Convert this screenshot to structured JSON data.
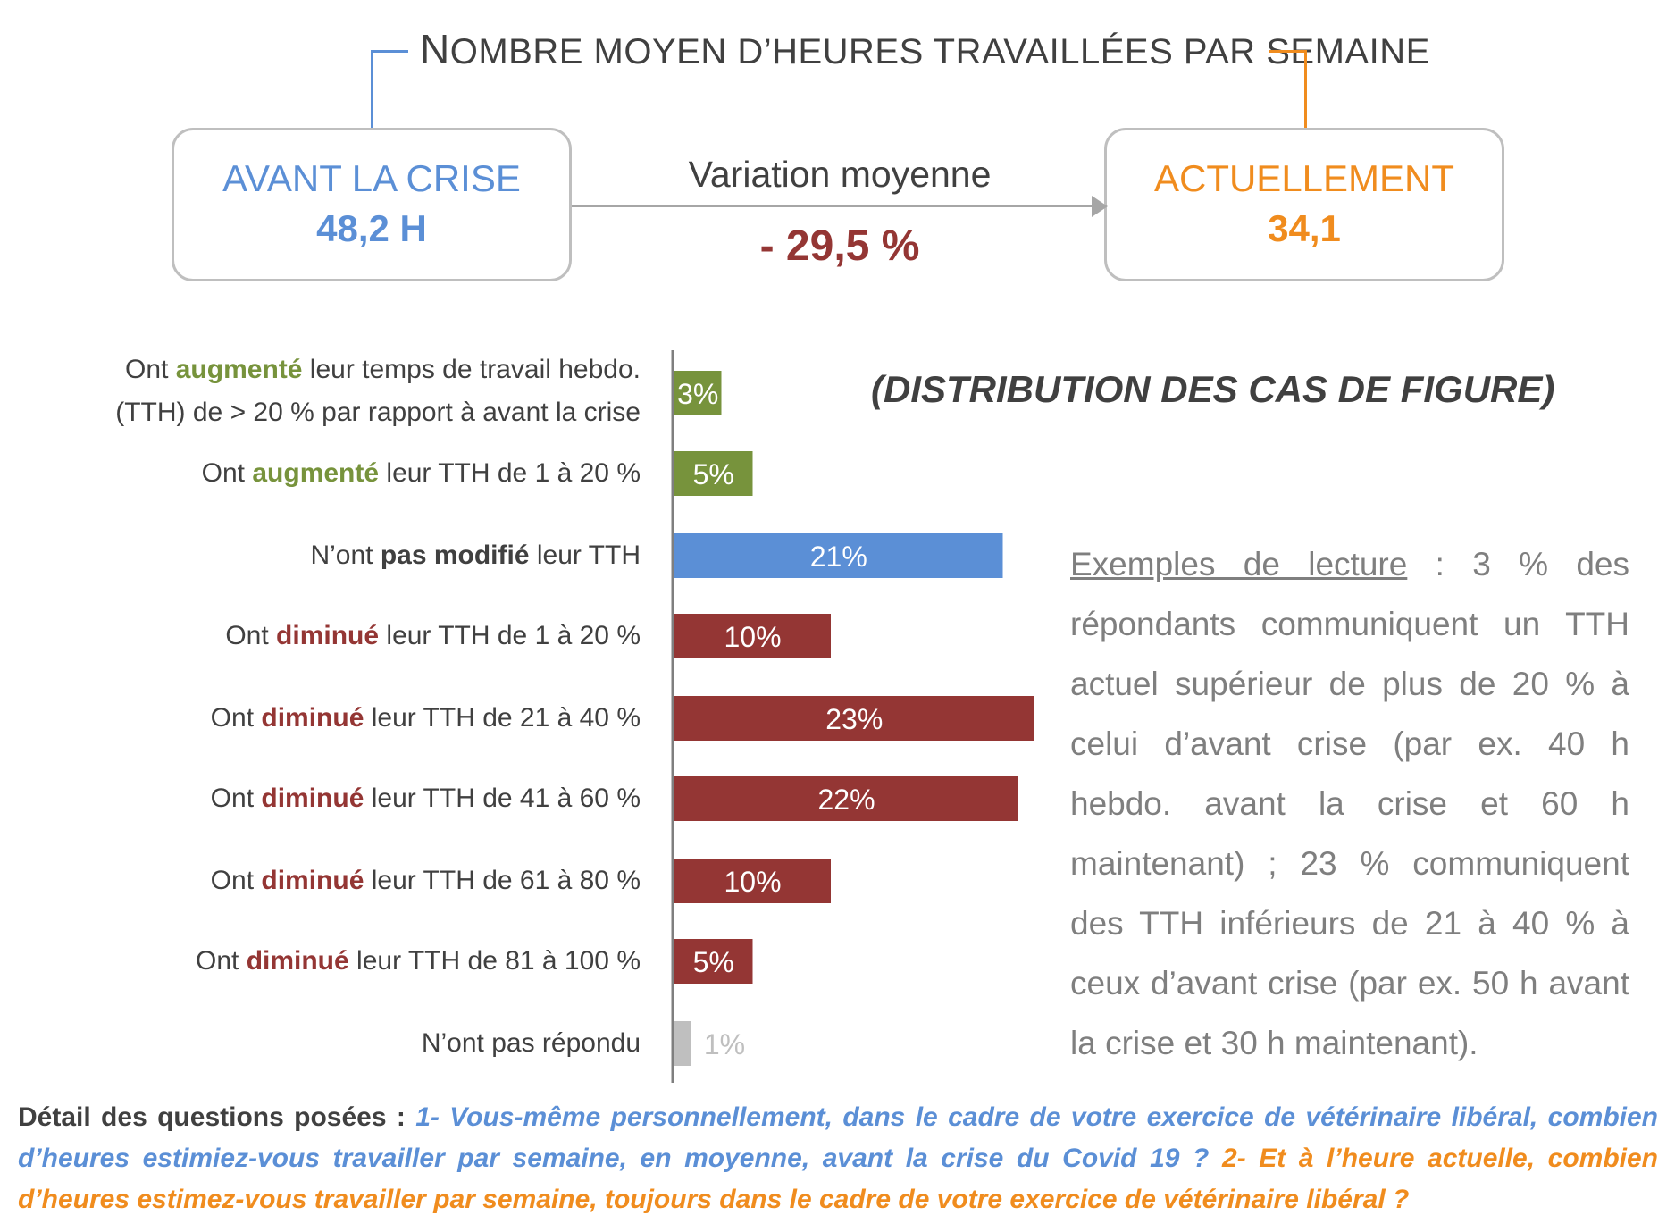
{
  "header": {
    "title_first_letter": "N",
    "title_rest": "OMBRE MOYEN D’HEURES TRAVAILLÉES PAR SEMAINE",
    "before": {
      "label": "AVANT LA CRISE",
      "value": "48,2 H"
    },
    "now": {
      "label": "ACTUELLEMENT",
      "value": "34,1"
    },
    "variation_label": "Variation moyenne",
    "variation_value": "- 29,5 %"
  },
  "colors": {
    "blue": "#5b8fd6",
    "orange": "#f08c1e",
    "green": "#77933c",
    "red": "#943634",
    "gray": "#bfbfbf"
  },
  "chart_data": {
    "type": "bar",
    "orientation": "horizontal",
    "title": "(DISTRIBUTION DES CAS DE FIGURE)",
    "unit": "%",
    "xlim": [
      0,
      25
    ],
    "categories": [
      {
        "prefix": "Ont ",
        "keyword": "augmenté",
        "suffix": " leur temps de travail hebdo.",
        "line2": "(TTH) de > 20 % par rapport à avant la crise",
        "kw_style": "green"
      },
      {
        "prefix": "Ont ",
        "keyword": "augmenté",
        "suffix": " leur TTH de 1 à 20 %",
        "kw_style": "green"
      },
      {
        "prefix": "N’ont ",
        "keyword": "pas modifié",
        "suffix": " leur TTH",
        "kw_style": "dark"
      },
      {
        "prefix": "Ont ",
        "keyword": "diminué",
        "suffix": " leur TTH de 1 à 20 %",
        "kw_style": "red"
      },
      {
        "prefix": "Ont ",
        "keyword": "diminué",
        "suffix": " leur TTH de 21 à 40 %",
        "kw_style": "red"
      },
      {
        "prefix": "Ont ",
        "keyword": "diminué",
        "suffix": " leur TTH de 41 à 60 %",
        "kw_style": "red"
      },
      {
        "prefix": "Ont ",
        "keyword": "diminué",
        "suffix": " leur TTH de 61 à 80 %",
        "kw_style": "red"
      },
      {
        "prefix": "Ont ",
        "keyword": "diminué",
        "suffix": " leur TTH de 81 à 100 %",
        "kw_style": "red"
      },
      {
        "prefix": "N’ont pas répondu",
        "keyword": "",
        "suffix": "",
        "kw_style": "dark"
      }
    ],
    "values": [
      3,
      5,
      21,
      10,
      23,
      22,
      10,
      5,
      1
    ],
    "data_labels": [
      "3%",
      "5%",
      "21%",
      "10%",
      "23%",
      "22%",
      "10%",
      "5%",
      "1%"
    ],
    "bar_colors": [
      "#77933c",
      "#77933c",
      "#5b8fd6",
      "#943634",
      "#943634",
      "#943634",
      "#943634",
      "#943634",
      "#bfbfbf"
    ]
  },
  "reading": {
    "heading": "Exemples de lecture",
    "text": " : 3 % des répondants communiquent un TTH actuel supérieur de plus de 20 % à celui d’avant crise (par ex. 40 h hebdo. avant la crise et 60 h maintenant) ; 23 % communiquent des TTH inférieurs de 21 à 40 % à ceux d’avant crise (par ex. 50 h avant la crise et 30 h maintenant)."
  },
  "footer": {
    "lead": "Détail des questions posées : ",
    "q1": "1- Vous-même personnellement, dans le cadre de votre exercice de vétérinaire libéral, combien d’heures estimiez-vous travailler par semaine, en moyenne, avant la crise du Covid 19 ? ",
    "q2": "2- Et à l’heure actuelle, combien d’heures estimez-vous travailler par semaine, toujours dans le cadre de votre exercice de vétérinaire libéral ?"
  }
}
